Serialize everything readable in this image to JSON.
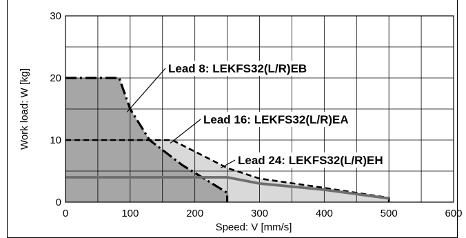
{
  "chart_data": {
    "type": "line",
    "title": "",
    "xlabel": "Speed: V [mm/s]",
    "ylabel": "Work load: W [kg]",
    "xlim": [
      0,
      600
    ],
    "ylim": [
      0,
      30
    ],
    "x_ticks": [
      "0",
      "100",
      "200",
      "300",
      "400",
      "500",
      "600"
    ],
    "y_ticks": [
      "0",
      "10",
      "20",
      "30"
    ],
    "grid": true,
    "series": [
      {
        "name": "Lead 8: LEKFS32(L/R)EB",
        "line_style": "dash-dot",
        "color": "#000000",
        "fill": "#a6a6a6",
        "points": [
          [
            0,
            20
          ],
          [
            83,
            20
          ],
          [
            100,
            15
          ],
          [
            130,
            10
          ],
          [
            180,
            6
          ],
          [
            250,
            1.5
          ],
          [
            250,
            0
          ]
        ]
      },
      {
        "name": "Lead 16: LEKFS32(L/R)EA",
        "line_style": "dashed",
        "color": "#000000",
        "fill": "#d9d9d9",
        "points": [
          [
            0,
            10
          ],
          [
            165,
            10
          ],
          [
            250,
            5.5
          ],
          [
            300,
            3.8
          ],
          [
            400,
            2.3
          ],
          [
            500,
            0.7
          ],
          [
            500,
            0
          ]
        ]
      },
      {
        "name": "Lead 24: LEKFS32(L/R)EH",
        "line_style": "solid",
        "color": "#6e6e6e",
        "fill": "none",
        "points": [
          [
            0,
            4
          ],
          [
            250,
            4
          ],
          [
            300,
            3
          ],
          [
            400,
            2
          ],
          [
            500,
            0.6
          ]
        ]
      }
    ]
  }
}
